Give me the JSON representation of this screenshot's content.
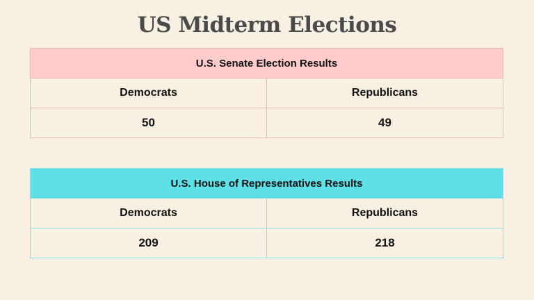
{
  "title": "US Midterm Elections",
  "senate": {
    "header": "U.S. Senate Election Results",
    "columns": [
      "Democrats",
      "Republicans"
    ],
    "values": [
      "50",
      "49"
    ],
    "header_color": "#ffcccb",
    "border_color": "#f3b5b3"
  },
  "house": {
    "header": "U.S. House of Representatives Results",
    "columns": [
      "Democrats",
      "Republicans"
    ],
    "values": [
      "209",
      "218"
    ],
    "header_color": "#5ee0e6",
    "border_color": "#8ddde4"
  },
  "background_color": "#f8f0e2"
}
